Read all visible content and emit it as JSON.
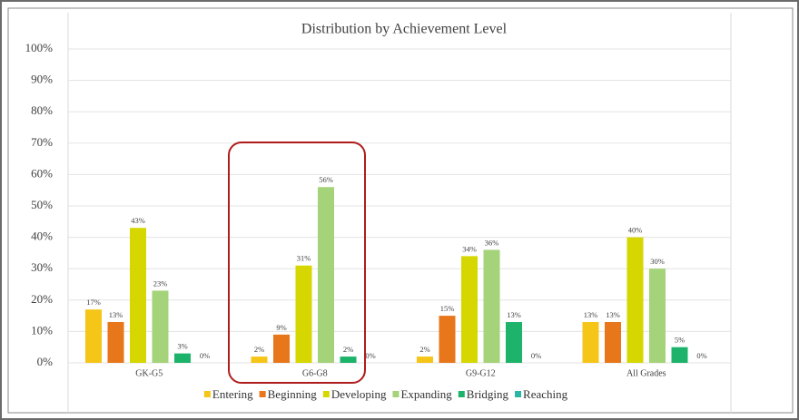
{
  "chart_data": {
    "type": "bar",
    "title": "Distribution by Achievement Level",
    "categories": [
      "GK-G5",
      "G6-G8",
      "G9-G12",
      "All Grades"
    ],
    "series": [
      {
        "name": "Entering",
        "color": "#f5c518",
        "values": [
          17,
          2,
          2,
          13
        ],
        "value_labels": [
          "17%",
          "2%",
          "2%",
          "13%"
        ]
      },
      {
        "name": "Beginning",
        "color": "#e8761a",
        "values": [
          13,
          9,
          15,
          13
        ],
        "value_labels": [
          "13%",
          "9%",
          "15%",
          "13%"
        ]
      },
      {
        "name": "Developing",
        "color": "#d6d600",
        "values": [
          43,
          31,
          34,
          40
        ],
        "value_labels": [
          "43%",
          "31%",
          "34%",
          "40%"
        ]
      },
      {
        "name": "Expanding",
        "color": "#a4d37a",
        "values": [
          23,
          56,
          36,
          30
        ],
        "value_labels": [
          "23%",
          "56%",
          "36%",
          "30%"
        ]
      },
      {
        "name": "Bridging",
        "color": "#1db36b",
        "values": [
          3,
          2,
          13,
          5
        ],
        "value_labels": [
          "3%",
          "2%",
          "13%",
          "5%"
        ]
      },
      {
        "name": "Reaching",
        "color": "#2bb5a5",
        "values": [
          0,
          0,
          0,
          0
        ],
        "value_labels": [
          "0%",
          "0%",
          "0%",
          "0%"
        ]
      }
    ],
    "ylim": [
      0,
      100
    ],
    "yticks": [
      {
        "value": 0,
        "label": "0%"
      },
      {
        "value": 10,
        "label": "10%"
      },
      {
        "value": 20,
        "label": "20%"
      },
      {
        "value": 30,
        "label": "30%"
      },
      {
        "value": 40,
        "label": "40%"
      },
      {
        "value": 50,
        "label": "50%"
      },
      {
        "value": 60,
        "label": "60%"
      },
      {
        "value": 70,
        "label": "70%"
      },
      {
        "value": 80,
        "label": "80%"
      },
      {
        "value": 90,
        "label": "90%"
      },
      {
        "value": 100,
        "label": "100%"
      }
    ],
    "grid": true
  }
}
